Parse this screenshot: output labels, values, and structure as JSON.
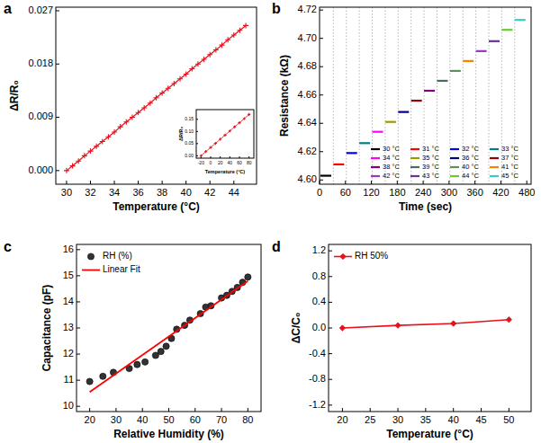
{
  "chart_data": [
    {
      "type": "line",
      "title": "a",
      "xlabel": "Temperature (°C)",
      "ylabel": "ΔR/R₀",
      "x": [
        30,
        30.5,
        31,
        31.5,
        32,
        32.5,
        33,
        33.5,
        34,
        34.5,
        35,
        35.5,
        36,
        36.5,
        37,
        37.5,
        38,
        38.5,
        39,
        39.5,
        40,
        40.5,
        41,
        41.5,
        42,
        42.5,
        43,
        43.5,
        44,
        44.5,
        45
      ],
      "values": [
        0,
        0.0008,
        0.0016,
        0.0025,
        0.0033,
        0.0041,
        0.0049,
        0.0057,
        0.0065,
        0.0074,
        0.0082,
        0.009,
        0.0098,
        0.0106,
        0.0114,
        0.0123,
        0.0131,
        0.0139,
        0.0147,
        0.0155,
        0.0163,
        0.0172,
        0.018,
        0.0188,
        0.0196,
        0.0204,
        0.0212,
        0.0221,
        0.0229,
        0.0237,
        0.0245
      ],
      "color": "#e8101a",
      "marker": "plus",
      "xlim": [
        29.1,
        45.9
      ],
      "ylim": [
        -0.0023,
        0.0276
      ],
      "xticks": [
        30,
        32,
        34,
        36,
        38,
        40,
        42,
        44
      ],
      "yticks": [
        {
          "value": 0,
          "label": "0.000"
        },
        0.009,
        0.018,
        0.027
      ]
    },
    {
      "type": "line",
      "xlabel": "Temperature (°C)",
      "ylabel": "ΔR/R₀",
      "x": [
        -20,
        -10,
        0,
        10,
        20,
        30,
        40,
        50,
        60,
        70,
        80
      ],
      "values": [
        0,
        0.017,
        0.034,
        0.051,
        0.068,
        0.085,
        0.102,
        0.119,
        0.136,
        0.153,
        0.17
      ],
      "color": "#e8101a",
      "marker": "plus",
      "xlim": [
        -30,
        90
      ],
      "ylim": [
        -0.01,
        0.19
      ],
      "xticks": [
        -20,
        0,
        20,
        40,
        60,
        80
      ],
      "yticks": [
        {
          "value": 0,
          "label": "0.00"
        },
        0.05,
        {
          "value": 0.1,
          "label": "0.10"
        },
        0.15
      ]
    },
    {
      "type": "line",
      "title": "b",
      "xlabel": "Time (sec)",
      "ylabel": "Resistance (kΩ)",
      "xlim": [
        0,
        490
      ],
      "ylim": [
        4.597,
        4.722
      ],
      "xticks": [
        0,
        60,
        120,
        180,
        240,
        300,
        360,
        420,
        480
      ],
      "yticks": [
        {
          "value": 4.6,
          "label": "4.60"
        },
        4.62,
        4.64,
        4.66,
        4.68,
        {
          "value": 4.7,
          "label": "4.70"
        },
        4.72
      ],
      "legend": "lower right",
      "series": [
        {
          "name": "30 °C",
          "color": "#000000",
          "x": [
            2,
            27
          ],
          "values": [
            4.603,
            4.603
          ]
        },
        {
          "name": "31 °C",
          "color": "#ff0000",
          "x": [
            32,
            57
          ],
          "values": [
            4.611,
            4.611
          ]
        },
        {
          "name": "32 °C",
          "color": "#0000ff",
          "x": [
            62,
            87
          ],
          "values": [
            4.619,
            4.619
          ]
        },
        {
          "name": "33 °C",
          "color": "#008080",
          "x": [
            92,
            117
          ],
          "values": [
            4.626,
            4.626
          ]
        },
        {
          "name": "34 °C",
          "color": "#ff00ff",
          "x": [
            122,
            147
          ],
          "values": [
            4.634,
            4.634
          ]
        },
        {
          "name": "35 °C",
          "color": "#999900",
          "x": [
            152,
            177
          ],
          "values": [
            4.641,
            4.641
          ]
        },
        {
          "name": "36 °C",
          "color": "#000080",
          "x": [
            182,
            207
          ],
          "values": [
            4.648,
            4.648
          ]
        },
        {
          "name": "37 °C",
          "color": "#990000",
          "x": [
            212,
            237
          ],
          "values": [
            4.656,
            4.656
          ]
        },
        {
          "name": "38 °C",
          "color": "#800080",
          "x": [
            242,
            267
          ],
          "values": [
            4.663,
            4.663
          ]
        },
        {
          "name": "39 °C",
          "color": "#4d6666",
          "x": [
            272,
            297
          ],
          "values": [
            4.67,
            4.67
          ]
        },
        {
          "name": "40 °C",
          "color": "#5f8f5f",
          "x": [
            302,
            327
          ],
          "values": [
            4.677,
            4.677
          ]
        },
        {
          "name": "41 °C",
          "color": "#ff8000",
          "x": [
            332,
            357
          ],
          "values": [
            4.684,
            4.684
          ]
        },
        {
          "name": "42 °C",
          "color": "#9933cc",
          "x": [
            362,
            387
          ],
          "values": [
            4.691,
            4.691
          ]
        },
        {
          "name": "43 °C",
          "color": "#663399",
          "x": [
            392,
            417
          ],
          "values": [
            4.698,
            4.698
          ]
        },
        {
          "name": "44 °C",
          "color": "#66cc33",
          "x": [
            422,
            447
          ],
          "values": [
            4.706,
            4.706
          ]
        },
        {
          "name": "45 °C",
          "color": "#33cccc",
          "x": [
            452,
            477
          ],
          "values": [
            4.713,
            4.713
          ]
        }
      ]
    },
    {
      "type": "scatter",
      "title": "c",
      "xlabel": "Relative Humidity (%)",
      "ylabel": "Capacitance (pF)",
      "xlim": [
        15,
        85
      ],
      "ylim": [
        9.8,
        16.2
      ],
      "xticks": [
        20,
        30,
        40,
        50,
        60,
        70,
        80
      ],
      "yticks": [
        10,
        11,
        12,
        13,
        14,
        15,
        16
      ],
      "legend": "upper left",
      "series": [
        {
          "name": "RH (%)",
          "type": "scatter",
          "color": "#333333",
          "marker": "circle",
          "x": [
            20,
            25,
            29,
            35,
            38,
            41,
            45,
            47,
            49,
            51,
            53,
            56,
            58,
            62,
            64,
            66,
            70,
            72,
            74,
            76,
            78,
            80
          ],
          "values": [
            10.95,
            11.15,
            11.3,
            11.45,
            11.6,
            11.7,
            11.95,
            12.1,
            12.3,
            12.6,
            12.95,
            13.1,
            13.3,
            13.55,
            13.8,
            13.85,
            14.15,
            14.25,
            14.4,
            14.55,
            14.75,
            14.95
          ]
        },
        {
          "name": "Linear Fit",
          "type": "line",
          "color": "#ff0000",
          "x": [
            20,
            80
          ],
          "values": [
            10.55,
            14.8
          ]
        }
      ]
    },
    {
      "type": "line",
      "title": "d",
      "xlabel": "Temperature (°C)",
      "ylabel": "ΔC/C₀",
      "xlim": [
        17.5,
        54
      ],
      "ylim": [
        -1.3,
        1.3
      ],
      "xticks": [
        20,
        25,
        30,
        35,
        40,
        45,
        50
      ],
      "yticks": [
        -1.2,
        -0.8,
        -0.4,
        {
          "value": 0,
          "label": "0.0"
        },
        0.4,
        0.8,
        1.2
      ],
      "legend": "upper left",
      "series": [
        {
          "name": "RH 50%",
          "color": "#e8101a",
          "marker": "diamond",
          "x": [
            20,
            30,
            40,
            50
          ],
          "values": [
            0,
            0.04,
            0.07,
            0.13
          ]
        }
      ]
    }
  ]
}
